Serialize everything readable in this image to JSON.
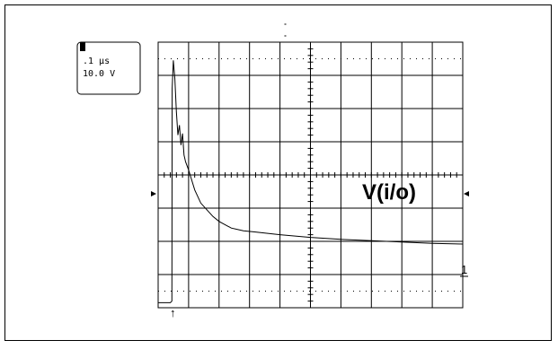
{
  "chart_data": {
    "type": "line",
    "title": "",
    "xlabel": "",
    "ylabel": "",
    "channel_readout": {
      "channel": "1",
      "timebase": ".1 µs",
      "volts_per_div": "10.0 V"
    },
    "grid": {
      "divisions_x": 10,
      "divisions_y": 8,
      "dotted_subgrid": true
    },
    "xlim": [
      0,
      10
    ],
    "ylim": [
      0,
      8
    ],
    "ground_marker_label": "1",
    "trigger_marker": "↑",
    "series": [
      {
        "name": "V(i/o)",
        "x_div": [
          0.0,
          0.4,
          0.45,
          0.46,
          0.5,
          0.55,
          0.6,
          0.65,
          0.7,
          0.75,
          0.8,
          0.85,
          0.9,
          1.0,
          1.1,
          1.2,
          1.4,
          1.6,
          1.8,
          2.0,
          2.4,
          2.8,
          3.2,
          3.6,
          4.0,
          5.0,
          6.0,
          7.0,
          8.0,
          9.0,
          10.0
        ],
        "y_div": [
          0.15,
          0.15,
          0.2,
          6.6,
          7.45,
          6.9,
          5.9,
          5.2,
          5.5,
          4.9,
          5.25,
          4.6,
          4.4,
          4.15,
          3.85,
          3.55,
          3.15,
          2.95,
          2.75,
          2.6,
          2.4,
          2.32,
          2.28,
          2.24,
          2.2,
          2.12,
          2.06,
          2.02,
          1.98,
          1.94,
          1.92
        ]
      }
    ]
  }
}
